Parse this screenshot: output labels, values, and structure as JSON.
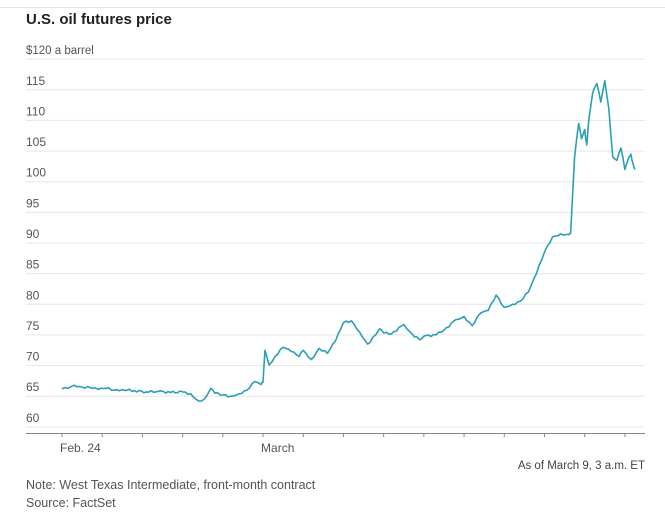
{
  "title": "U.S. oil futures price",
  "as_of": "As of March 9, 3 a.m. ET",
  "note": "Note: West Texas Intermediate, front-month contract",
  "source": "Source: FactSet",
  "colors": {
    "line": "#2aa0b2",
    "grid": "#e6e6e6",
    "axis": "#888888",
    "text": "#555555"
  },
  "chart_data": {
    "type": "line",
    "title": "U.S. oil futures price",
    "ylabel": "$120 a barrel",
    "ylim": [
      59,
      121
    ],
    "y_ticks": [
      {
        "value": 120,
        "label": "$120 a barrel"
      },
      {
        "value": 115,
        "label": "115"
      },
      {
        "value": 110,
        "label": "110"
      },
      {
        "value": 105,
        "label": "105"
      },
      {
        "value": 100,
        "label": "100"
      },
      {
        "value": 95,
        "label": "95"
      },
      {
        "value": 90,
        "label": "90"
      },
      {
        "value": 85,
        "label": "85"
      },
      {
        "value": 80,
        "label": "80"
      },
      {
        "value": 75,
        "label": "75"
      },
      {
        "value": 70,
        "label": "70"
      },
      {
        "value": 65,
        "label": "65"
      },
      {
        "value": 60,
        "label": "60"
      }
    ],
    "xlim": [
      0,
      14.5
    ],
    "x_ticks": [
      0,
      1,
      2,
      3,
      4,
      5,
      6,
      7,
      8,
      9,
      10,
      11,
      12,
      13,
      14
    ],
    "x_labels": [
      {
        "value": 0,
        "label": "Feb. 24"
      },
      {
        "value": 5,
        "label": "March"
      }
    ],
    "series": [
      {
        "name": "WTI front-month",
        "x": [
          0,
          0.15,
          0.3,
          0.5,
          0.7,
          0.9,
          1.1,
          1.3,
          1.5,
          1.8,
          2.1,
          2.4,
          2.7,
          3.0,
          3.2,
          3.4,
          3.55,
          3.7,
          3.8,
          4.0,
          4.2,
          4.4,
          4.6,
          4.8,
          4.95,
          5.0,
          5.05,
          5.15,
          5.3,
          5.5,
          5.7,
          5.9,
          6.0,
          6.2,
          6.4,
          6.6,
          6.8,
          7.0,
          7.2,
          7.4,
          7.6,
          7.8,
          7.9,
          8.0,
          8.2,
          8.5,
          8.7,
          8.9,
          9.0,
          9.3,
          9.5,
          9.8,
          10.0,
          10.2,
          10.4,
          10.6,
          10.8,
          11.0,
          11.2,
          11.4,
          11.6,
          11.8,
          12.0,
          12.2,
          12.4,
          12.55,
          12.65,
          12.75,
          12.85,
          12.92,
          13.0,
          13.05,
          13.1,
          13.2,
          13.3,
          13.4,
          13.5,
          13.6,
          13.7,
          13.8,
          13.9,
          14.0,
          14.1,
          14.15,
          14.2,
          14.25
        ],
        "values": [
          66.2,
          66.3,
          66.8,
          66.5,
          66.4,
          66.1,
          66.3,
          66.0,
          66.1,
          65.9,
          65.7,
          65.8,
          65.6,
          65.7,
          65.4,
          64.2,
          64.6,
          66.3,
          65.5,
          65.2,
          65.0,
          65.4,
          66.0,
          67.4,
          66.9,
          67.3,
          72.5,
          70.1,
          71.5,
          73.0,
          72.3,
          71.5,
          72.5,
          71.0,
          72.8,
          72.0,
          74.0,
          77.0,
          77.3,
          75.5,
          73.5,
          75.0,
          76.0,
          75.3,
          75.2,
          76.7,
          75.2,
          74.2,
          74.8,
          75.0,
          75.8,
          77.5,
          78.0,
          76.5,
          78.5,
          79.0,
          81.5,
          79.5,
          80.0,
          80.5,
          82.0,
          85.0,
          88.5,
          91.0,
          91.5,
          91.4,
          91.6,
          104.0,
          109.5,
          107.0,
          108.5,
          106.0,
          110.0,
          114.5,
          116.0,
          113.0,
          116.5,
          112.0,
          104.0,
          103.5,
          105.5,
          102.0,
          104.0,
          104.5,
          103.0,
          102.0
        ]
      }
    ]
  }
}
